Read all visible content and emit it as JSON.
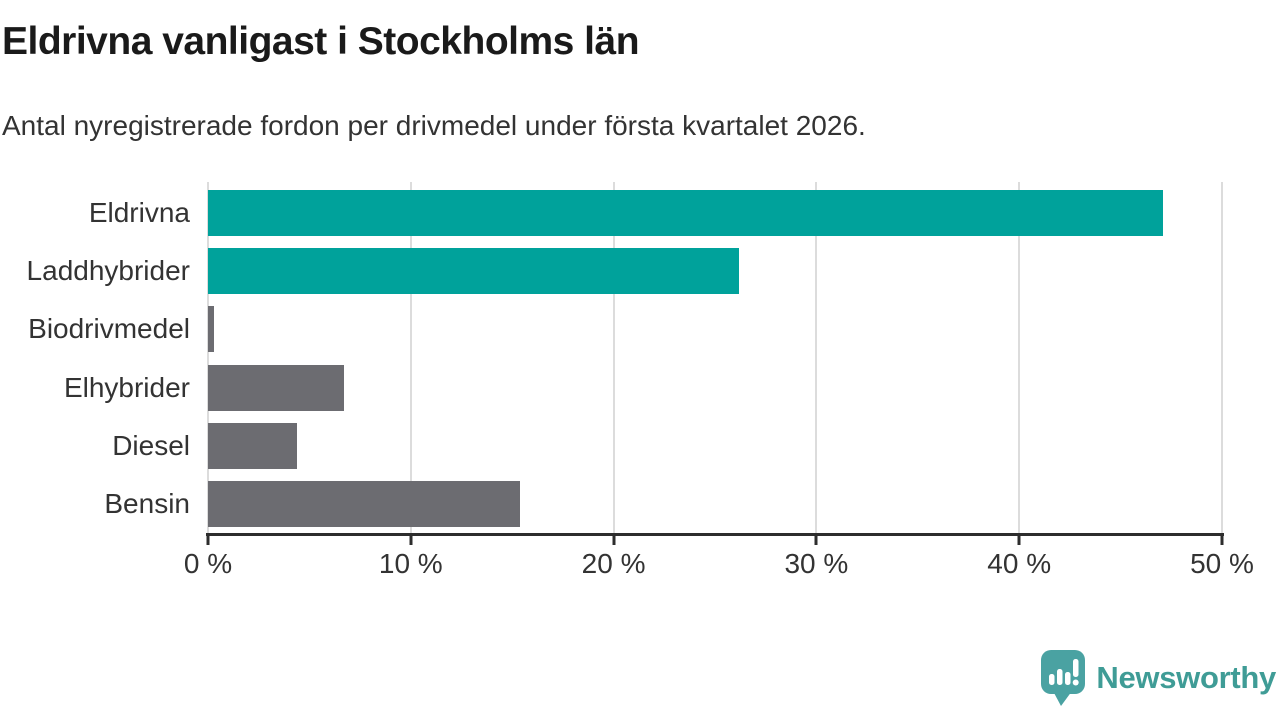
{
  "header": {
    "title": "Eldrivna vanligast i Stockholms län",
    "subtitle": "Antal nyregistrerade fordon per drivmedel under första kvartalet 2026."
  },
  "chart_data": {
    "type": "bar",
    "orientation": "horizontal",
    "title": "Eldrivna vanligast i Stockholms län",
    "subtitle": "Antal nyregistrerade fordon per drivmedel under första kvartalet 2026.",
    "categories": [
      "Eldrivna",
      "Laddhybrider",
      "Biodrivmedel",
      "Elhybrider",
      "Diesel",
      "Bensin"
    ],
    "values": [
      47.1,
      26.2,
      0.3,
      6.7,
      4.4,
      15.4
    ],
    "unit": "%",
    "bar_colors": [
      "#00a29b",
      "#00a29b",
      "#6c6c71",
      "#6c6c71",
      "#6c6c71",
      "#6c6c71"
    ],
    "xlabel": "",
    "ylabel": "",
    "xlim": [
      0,
      50
    ],
    "x_ticks": [
      0,
      10,
      20,
      30,
      40,
      50
    ],
    "x_tick_labels": [
      "0 %",
      "10 %",
      "20 %",
      "30 %",
      "40 %",
      "50 %"
    ],
    "grid": "vertical",
    "legend": "none"
  },
  "colors": {
    "accent_teal": "#00a29b",
    "bar_gray": "#6c6c71",
    "axis": "#2d2d2d",
    "gridline": "#dcdcdc",
    "title_text": "#1a1a1a",
    "body_text": "#333333",
    "logo_icon": "#4aa2a2",
    "logo_text": "#3f9c96"
  },
  "footer": {
    "brand": "Newsworthy"
  }
}
